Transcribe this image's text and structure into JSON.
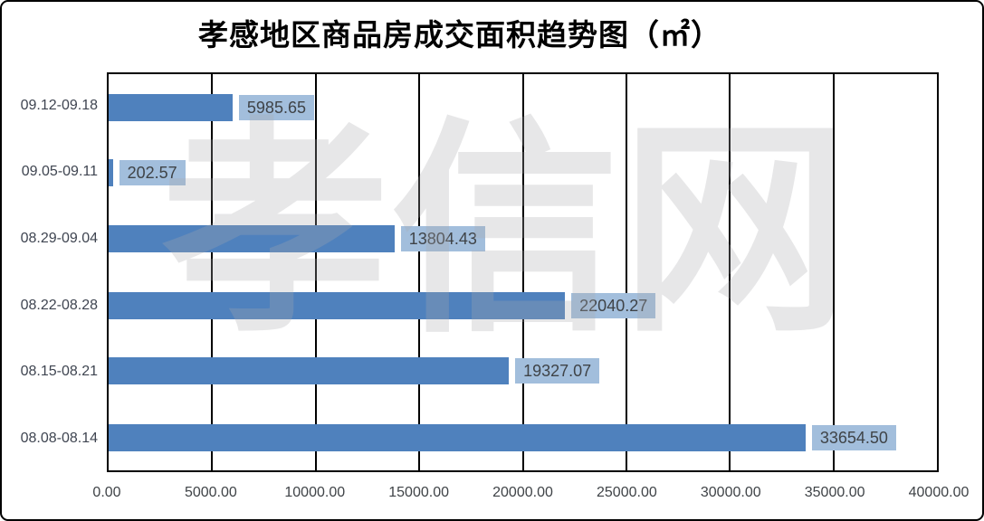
{
  "title": "孝感地区商品房成交面积趋势图（㎡）",
  "watermark": "孝信网",
  "chart_data": {
    "type": "bar",
    "orientation": "horizontal",
    "title": "孝感地区商品房成交面积趋势图（㎡）",
    "categories": [
      "09.12-09.18",
      "09.05-09.11",
      "08.29-09.04",
      "08.22-08.28",
      "08.15-08.21",
      "08.08-08.14"
    ],
    "values": [
      5985.65,
      202.57,
      13804.43,
      22040.27,
      19327.07,
      33654.5
    ],
    "value_labels": [
      "5985.65",
      "202.57",
      "13804.43",
      "22040.27",
      "19327.07",
      "33654.50"
    ],
    "x_ticks": [
      "0.00",
      "5000.00",
      "10000.00",
      "15000.00",
      "20000.00",
      "25000.00",
      "30000.00",
      "35000.00",
      "40000.00"
    ],
    "xlim": [
      0,
      40000
    ],
    "grid": true,
    "legend": "none",
    "colors": {
      "bar": "#4f81bd",
      "value_label_bg": "#a2bedc",
      "value_label_text": "#3f4347",
      "axis_text": "#3f4551",
      "gridline": "#000000"
    }
  }
}
